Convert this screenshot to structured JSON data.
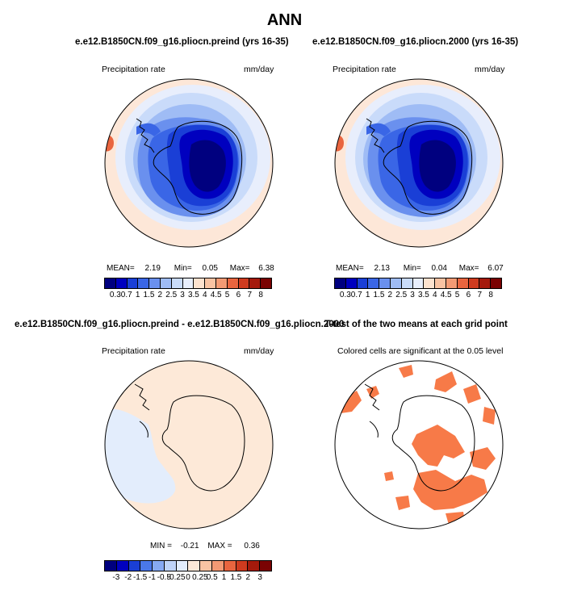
{
  "main_title": "ANN",
  "panels": {
    "tl": {
      "title": "e.e12.B1850CN.f09_g16.pliocn.preind (yrs 16-35)",
      "left_label": "Precipitation rate",
      "right_label": "mm/day",
      "stats": {
        "mean_label": "MEAN=",
        "mean": "2.19",
        "min_label": "Min=",
        "min": "0.05",
        "max_label": "Max=",
        "max": "6.38"
      },
      "colorbar_ticks": [
        "0.3",
        "0.7",
        "1",
        "1.5",
        "2",
        "2.5",
        "3",
        "3.5",
        "4",
        "4.5",
        "5",
        "6",
        "7",
        "8"
      ]
    },
    "tr": {
      "title": "e.e12.B1850CN.f09_g16.pliocn.2000 (yrs 16-35)",
      "left_label": "Precipitation rate",
      "right_label": "mm/day",
      "stats": {
        "mean_label": "MEAN=",
        "mean": "2.13",
        "min_label": "Min=",
        "min": "0.04",
        "max_label": "Max=",
        "max": "6.07"
      },
      "colorbar_ticks": [
        "0.3",
        "0.7",
        "1",
        "1.5",
        "2",
        "2.5",
        "3",
        "3.5",
        "4",
        "4.5",
        "5",
        "6",
        "7",
        "8"
      ]
    },
    "bl": {
      "title": "e.e12.B1850CN.f09_g16.pliocn.preind - e.e12.B1850CN.f09_g16.pliocn.2000",
      "left_label": "Precipitation rate",
      "right_label": "mm/day",
      "stats": {
        "min_label": "MIN =",
        "min": "-0.21",
        "max_label": "MAX =",
        "max": "0.36"
      },
      "colorbar_ticks": [
        "-3",
        "-2",
        "-1.5",
        "-1",
        "-0.5",
        "-0.25",
        "0",
        "0.25",
        "0.5",
        "1",
        "1.5",
        "2",
        "3"
      ]
    },
    "br": {
      "title": "T-test of the two means at each grid point",
      "subtitle": "Colored cells are significant at the 0.05 level"
    }
  },
  "colors": {
    "abs_scale": [
      "#00007f",
      "#0000bf",
      "#1a3fd6",
      "#3a66e6",
      "#6a90ee",
      "#9fbcf5",
      "#c9dbfa",
      "#e8eefc",
      "#fde2cf",
      "#f9c3a3",
      "#f39a74",
      "#e9653f",
      "#cf3b1f",
      "#a51a0c",
      "#7a0303"
    ],
    "diff_scale": [
      "#00007f",
      "#0000bf",
      "#1a3fd6",
      "#4a78ea",
      "#86a9f2",
      "#bfd3f7",
      "#e3edfc",
      "#fde9d8",
      "#f9c3a3",
      "#f39a74",
      "#e9653f",
      "#cf3b1f",
      "#a51a0c",
      "#7a0303"
    ],
    "ocean_abs": "#fde7d8",
    "ttest_fill": "#f77a48",
    "coast": "#000000"
  }
}
